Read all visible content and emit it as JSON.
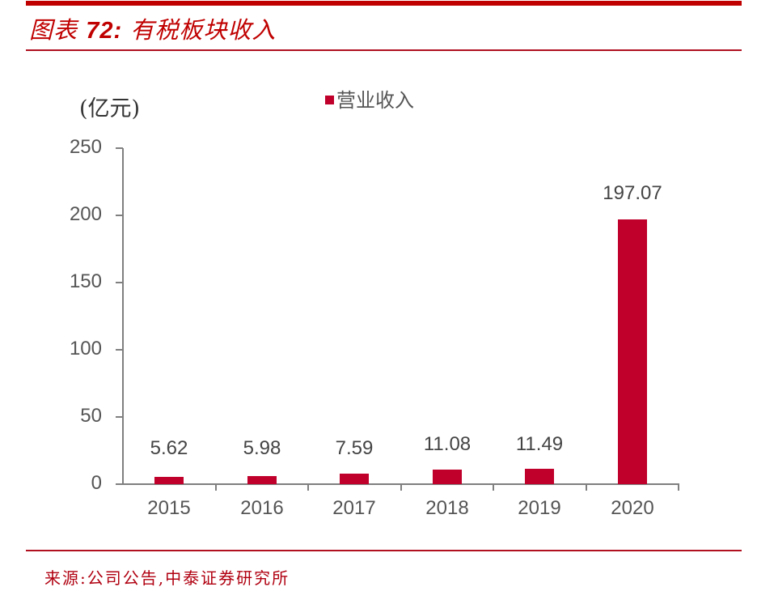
{
  "header": {
    "title_prefix": "图表",
    "title_number": "72:",
    "title_text": "有税板块收入"
  },
  "colors": {
    "accent": "#c00000",
    "bar": "#c0002b",
    "axis": "#7f7f7f",
    "text": "#555555"
  },
  "chart_data": {
    "type": "bar",
    "title": "有税板块收入",
    "ylabel": "(亿元)",
    "xlabel": "",
    "categories": [
      "2015",
      "2016",
      "2017",
      "2018",
      "2019",
      "2020"
    ],
    "series": [
      {
        "name": "营业收入",
        "values": [
          5.62,
          5.98,
          7.59,
          11.08,
          11.49,
          197.07
        ]
      }
    ],
    "data_labels": [
      "5.62",
      "5.98",
      "7.59",
      "11.08",
      "11.49",
      "197.07"
    ],
    "ylim": [
      0,
      250
    ],
    "yticks": [
      "0",
      "50",
      "100",
      "150",
      "200",
      "250"
    ],
    "legend_position": "top-center",
    "grid": false
  },
  "footer": {
    "source": "来源:公司公告,中泰证券研究所"
  }
}
